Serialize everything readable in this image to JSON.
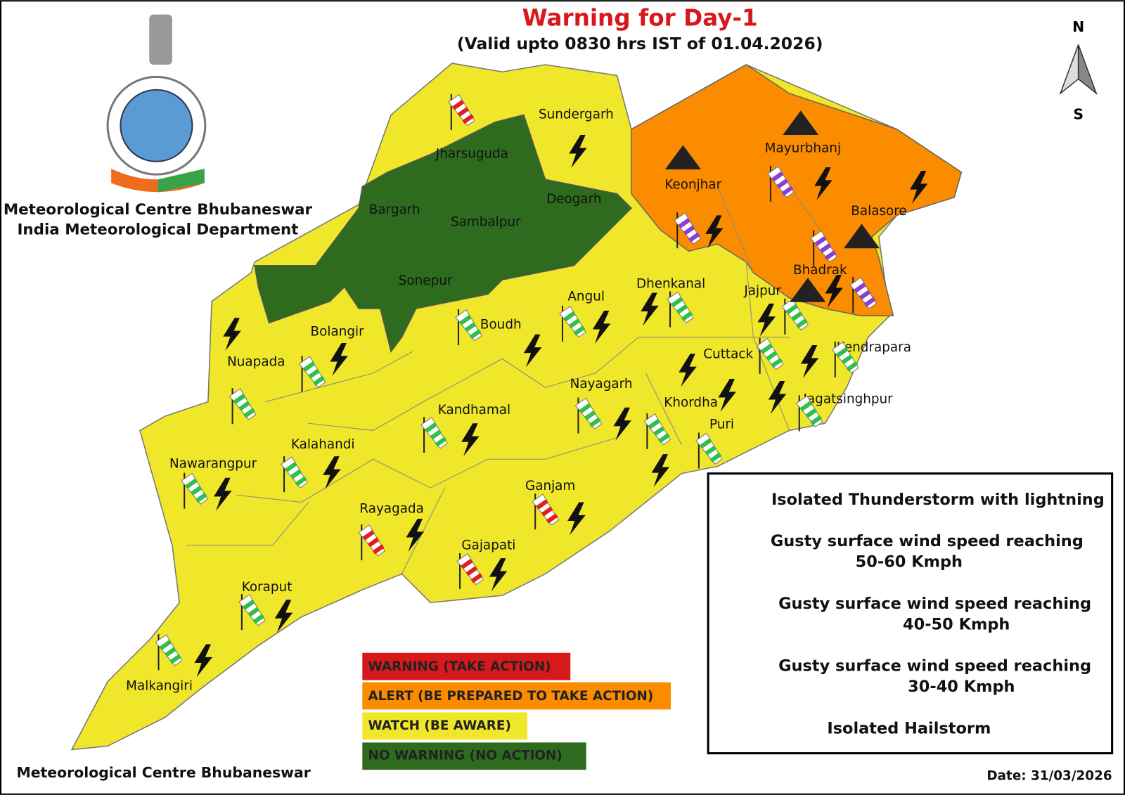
{
  "header": {
    "title": "Warning for Day-1",
    "subtitle": "(Valid upto 0830 hrs IST of 01.04.2026)"
  },
  "organization": {
    "line1": "Meteorological Centre Bhubaneswar",
    "line2": "India Meteorological Department"
  },
  "compass": {
    "north": "N",
    "south": "S"
  },
  "districts": [
    "Sundergarh",
    "Jharsuguda",
    "Deogarh",
    "Bargarh",
    "Sambalpur",
    "Sonepur",
    "Keonjhar",
    "Mayurbhanj",
    "Balasore",
    "Bhadrak",
    "Dhenkanal",
    "Angul",
    "Jajpur",
    "Boudh",
    "Bolangir",
    "Nuapada",
    "Cuttack",
    "Kendrapara",
    "Nayagarh",
    "Jagatsinghpur",
    "Khordha",
    "Kandhamal",
    "Puri",
    "Kalahandi",
    "Nawarangpur",
    "Ganjam",
    "Rayagada",
    "Gajapati",
    "Koraput",
    "Malkangiri"
  ],
  "legend": [
    {
      "label": "Isolated Thunderstorm with lightning"
    },
    {
      "label": "Gusty surface wind speed reaching",
      "detail": "50-60 Kmph"
    },
    {
      "label": "Gusty surface wind speed reaching",
      "detail": "40-50 Kmph"
    },
    {
      "label": "Gusty surface wind speed reaching",
      "detail": "30-40 Kmph"
    },
    {
      "label": "Isolated Hailstorm"
    }
  ],
  "color_legend": [
    "WARNING (TAKE ACTION)",
    "ALERT (BE PREPARED TO TAKE ACTION)",
    "WATCH (BE AWARE)",
    "NO WARNING (NO ACTION)"
  ],
  "footer": {
    "source": "Meteorological Centre Bhubaneswar",
    "date": "Date: 31/03/2026"
  }
}
